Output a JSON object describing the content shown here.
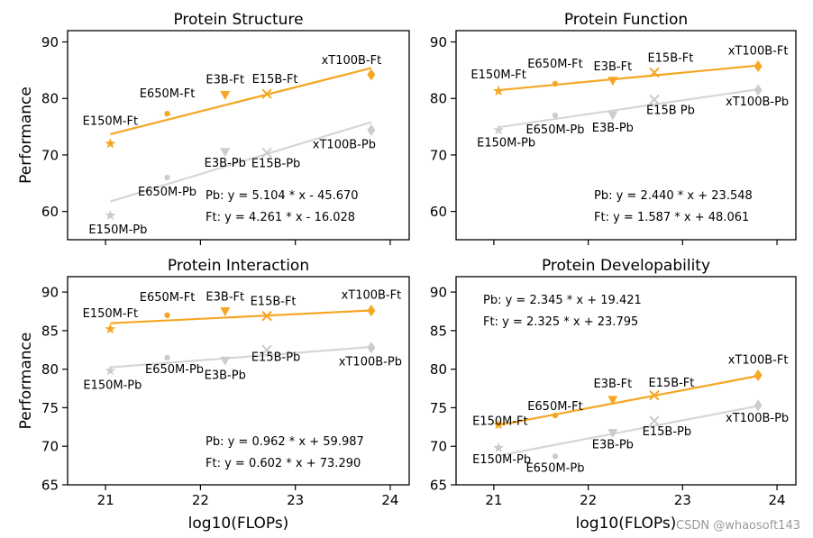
{
  "watermark": "CSDN @whaosoft143",
  "colors": {
    "ft": "#F5A623",
    "pb": "#CCCCCC",
    "axis": "#000000",
    "ft_line": "#F5A623",
    "pb_line": "#D6D6D6"
  },
  "chart_data": [
    {
      "type": "scatter",
      "title": "Protein Structure",
      "xlabel": "",
      "ylabel": "Performance",
      "xlim": [
        20.6,
        24.2
      ],
      "ylim": [
        55,
        92
      ],
      "xticks": [
        21,
        22,
        23,
        24
      ],
      "yticks": [
        60,
        70,
        80,
        90
      ],
      "series": [
        {
          "name": "Ft",
          "fit_equation": "Ft: y = 4.261 * x - 16.028",
          "slope": 4.261,
          "intercept": -16.028,
          "points": [
            {
              "label": "E150M-Ft",
              "x": 21.05,
              "y": 72.0,
              "marker": "star"
            },
            {
              "label": "E650M-Ft",
              "x": 21.65,
              "y": 77.3,
              "marker": "dot"
            },
            {
              "label": "E3B-Ft",
              "x": 22.26,
              "y": 80.6,
              "marker": "tri"
            },
            {
              "label": "E15B-Ft",
              "x": 22.7,
              "y": 80.8,
              "marker": "x"
            },
            {
              "label": "xT100B-Ft",
              "x": 23.8,
              "y": 84.2,
              "marker": "diamond"
            }
          ]
        },
        {
          "name": "Pb",
          "fit_equation": "Pb: y = 5.104 * x - 45.670",
          "slope": 5.104,
          "intercept": -45.67,
          "points": [
            {
              "label": "E150M-Pb",
              "x": 21.05,
              "y": 59.3,
              "marker": "star"
            },
            {
              "label": "E650M-Pb",
              "x": 21.65,
              "y": 66.0,
              "marker": "dot"
            },
            {
              "label": "E3B-Pb",
              "x": 22.26,
              "y": 70.5,
              "marker": "tri"
            },
            {
              "label": "E15B-Pb",
              "x": 22.7,
              "y": 70.4,
              "marker": "x"
            },
            {
              "label": "xT100B-Pb",
              "x": 23.8,
              "y": 74.4,
              "marker": "diamond"
            }
          ]
        }
      ]
    },
    {
      "type": "scatter",
      "title": "Protein Function",
      "xlabel": "",
      "ylabel": "",
      "xlim": [
        20.6,
        24.2
      ],
      "ylim": [
        55,
        92
      ],
      "xticks": [
        21,
        22,
        23,
        24
      ],
      "yticks": [
        60,
        70,
        80,
        90
      ],
      "series": [
        {
          "name": "Ft",
          "fit_equation": "Ft: y = 1.587 * x + 48.061",
          "slope": 1.587,
          "intercept": 48.061,
          "points": [
            {
              "label": "E150M-Ft",
              "x": 21.05,
              "y": 81.3,
              "marker": "star"
            },
            {
              "label": "E650M-Ft",
              "x": 21.65,
              "y": 82.6,
              "marker": "dot"
            },
            {
              "label": "E3B-Ft",
              "x": 22.26,
              "y": 83.1,
              "marker": "tri"
            },
            {
              "label": "E15B-Ft",
              "x": 22.7,
              "y": 84.6,
              "marker": "x"
            },
            {
              "label": "xT100B-Ft",
              "x": 23.8,
              "y": 85.7,
              "marker": "diamond"
            }
          ]
        },
        {
          "name": "Pb",
          "fit_equation": "Pb: y = 2.440 * x + 23.548",
          "slope": 2.44,
          "intercept": 23.548,
          "points": [
            {
              "label": "E150M-Pb",
              "x": 21.05,
              "y": 74.4,
              "marker": "star"
            },
            {
              "label": "E650M-Pb",
              "x": 21.65,
              "y": 77.0,
              "marker": "dot"
            },
            {
              "label": "E3B-Pb",
              "x": 22.26,
              "y": 77.0,
              "marker": "tri"
            },
            {
              "label": "E15B Pb",
              "x": 22.7,
              "y": 79.8,
              "marker": "x"
            },
            {
              "label": "xT100B-Pb",
              "x": 23.8,
              "y": 81.5,
              "marker": "diamond"
            }
          ]
        }
      ]
    },
    {
      "type": "scatter",
      "title": "Protein Interaction",
      "xlabel": "log10(FLOPs)",
      "ylabel": "Performance",
      "xlim": [
        20.6,
        24.2
      ],
      "ylim": [
        65,
        92
      ],
      "xticks": [
        21,
        22,
        23,
        24
      ],
      "yticks": [
        65,
        70,
        75,
        80,
        85,
        90
      ],
      "series": [
        {
          "name": "Ft",
          "fit_equation": "Ft: y = 0.602 * x + 73.290",
          "slope": 0.602,
          "intercept": 73.29,
          "points": [
            {
              "label": "E150M-Ft",
              "x": 21.05,
              "y": 85.2,
              "marker": "star"
            },
            {
              "label": "E650M-Ft",
              "x": 21.65,
              "y": 87.0,
              "marker": "dot"
            },
            {
              "label": "E3B-Ft",
              "x": 22.26,
              "y": 87.5,
              "marker": "tri"
            },
            {
              "label": "E15B-Ft",
              "x": 22.7,
              "y": 86.9,
              "marker": "x"
            },
            {
              "label": "xT100B-Ft",
              "x": 23.8,
              "y": 87.6,
              "marker": "diamond"
            }
          ]
        },
        {
          "name": "Pb",
          "fit_equation": "Pb: y = 0.962 * x + 59.987",
          "slope": 0.962,
          "intercept": 59.987,
          "points": [
            {
              "label": "E150M-Pb",
              "x": 21.05,
              "y": 79.8,
              "marker": "star"
            },
            {
              "label": "E650M-Pb",
              "x": 21.65,
              "y": 81.5,
              "marker": "dot"
            },
            {
              "label": "E3B-Pb",
              "x": 22.26,
              "y": 81.1,
              "marker": "tri"
            },
            {
              "label": "E15B-Pb",
              "x": 22.7,
              "y": 82.5,
              "marker": "x"
            },
            {
              "label": "xT100B-Pb",
              "x": 23.8,
              "y": 82.8,
              "marker": "diamond"
            }
          ]
        }
      ]
    },
    {
      "type": "scatter",
      "title": "Protein Developability",
      "xlabel": "log10(FLOPs)",
      "ylabel": "",
      "xlim": [
        20.6,
        24.2
      ],
      "ylim": [
        65,
        92
      ],
      "xticks": [
        21,
        22,
        23,
        24
      ],
      "yticks": [
        65,
        70,
        75,
        80,
        85,
        90
      ],
      "series": [
        {
          "name": "Ft",
          "fit_equation": "Ft: y = 2.325 * x + 23.795",
          "slope": 2.325,
          "intercept": 23.795,
          "points": [
            {
              "label": "E150M-Ft",
              "x": 21.05,
              "y": 72.8,
              "marker": "star"
            },
            {
              "label": "E650M-Ft",
              "x": 21.65,
              "y": 74.0,
              "marker": "dot"
            },
            {
              "label": "E3B-Ft",
              "x": 22.26,
              "y": 76.0,
              "marker": "tri"
            },
            {
              "label": "E15B-Ft",
              "x": 22.7,
              "y": 76.6,
              "marker": "x"
            },
            {
              "label": "xT100B-Ft",
              "x": 23.8,
              "y": 79.2,
              "marker": "diamond"
            }
          ]
        },
        {
          "name": "Pb",
          "fit_equation": "Pb: y = 2.345 * x + 19.421",
          "slope": 2.345,
          "intercept": 19.421,
          "points": [
            {
              "label": "E150M-Pb",
              "x": 21.05,
              "y": 69.8,
              "marker": "star"
            },
            {
              "label": "E650M-Pb",
              "x": 21.65,
              "y": 68.7,
              "marker": "dot"
            },
            {
              "label": "E3B-Pb",
              "x": 22.26,
              "y": 71.7,
              "marker": "tri"
            },
            {
              "label": "E15B-Pb",
              "x": 22.7,
              "y": 73.3,
              "marker": "x"
            },
            {
              "label": "xT100B-Pb",
              "x": 23.8,
              "y": 75.3,
              "marker": "diamond"
            }
          ]
        }
      ]
    }
  ]
}
